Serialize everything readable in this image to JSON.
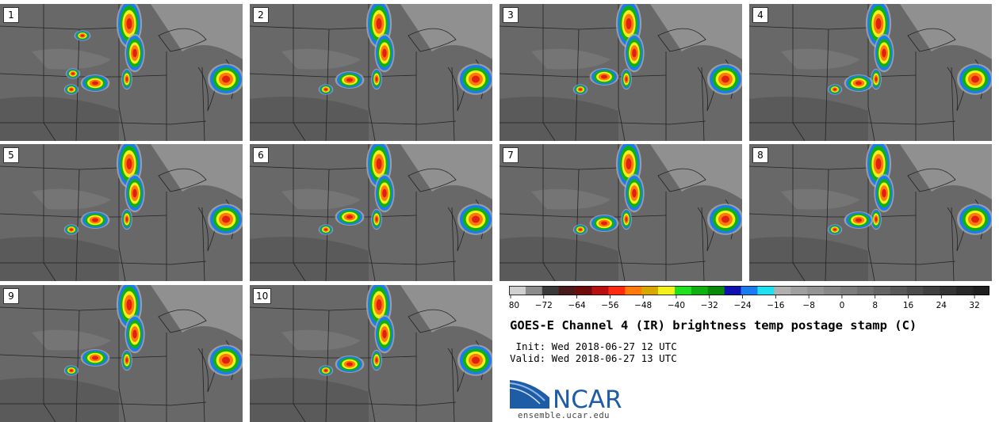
{
  "panels": [
    {
      "label": "1"
    },
    {
      "label": "2"
    },
    {
      "label": "3"
    },
    {
      "label": "4"
    },
    {
      "label": "5"
    },
    {
      "label": "6"
    },
    {
      "label": "7"
    },
    {
      "label": "8"
    },
    {
      "label": "9"
    },
    {
      "label": "10"
    }
  ],
  "colorbar": {
    "ticks": [
      "−80",
      "−72",
      "−64",
      "−56",
      "−48",
      "−40",
      "−32",
      "−24",
      "−16",
      "−8",
      "0",
      "8",
      "16",
      "24",
      "32"
    ],
    "colors": [
      "#d0d0d0",
      "#8c8c8c",
      "#3a3a3a",
      "#4a1a1a",
      "#6e0a0a",
      "#b81010",
      "#ff2a10",
      "#ff7a0a",
      "#d8a800",
      "#f2f21a",
      "#20e020",
      "#10b010",
      "#088a08",
      "#1010b0",
      "#1a7cf0",
      "#20e0f0",
      "#b0b0b0",
      "#a0a0a0",
      "#949494",
      "#888888",
      "#7c7c7c",
      "#707070",
      "#646464",
      "#585858",
      "#4c4c4c",
      "#404040",
      "#343434",
      "#282828",
      "#1e1e1e"
    ]
  },
  "title": "GOES-E Channel 4 (IR) brightness temp postage stamp (C)",
  "init_line": " Init: Wed 2018-06-27 12 UTC",
  "valid_line": "Valid: Wed 2018-06-27 13 UTC",
  "logo": {
    "text": "NCAR",
    "color": "#1f5ca6"
  },
  "website": "ensemble.ucar.edu"
}
